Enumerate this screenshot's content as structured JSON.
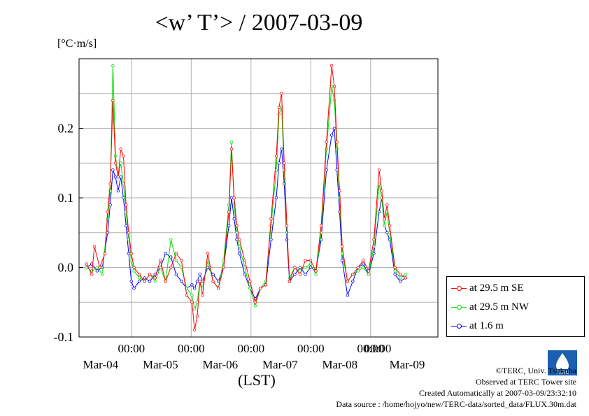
{
  "chart_data": {
    "type": "line",
    "title": "<w’ T’> / 2007-03-09",
    "ylabel": "[°C·m/s]",
    "xlabel": "(LST)",
    "ylim": [
      -0.1,
      0.3
    ],
    "yticks": [
      -0.1,
      0.0,
      0.1,
      0.2
    ],
    "ytick_labels": [
      "-0.1",
      "0.0",
      "0.1",
      "0.2"
    ],
    "xlim_hours": [
      0,
      144
    ],
    "xticks": [
      {
        "time": "00:00",
        "date": "Mar-04"
      },
      {
        "time": "00:00",
        "date": "Mar-05"
      },
      {
        "time": "00:00",
        "date": "Mar-06"
      },
      {
        "time": "00:00",
        "date": "Mar-07"
      },
      {
        "time": "00:00",
        "date": "Mar-08"
      },
      {
        "time": "00:00",
        "date": "Mar-09"
      }
    ],
    "grid": true,
    "legend_position": "right",
    "series": [
      {
        "name": "at 29.5 m SE",
        "color": "#ff0000",
        "points": [
          [
            0,
            0.005
          ],
          [
            2,
            -0.01
          ],
          [
            3,
            0.03
          ],
          [
            5,
            0.0
          ],
          [
            7,
            0.02
          ],
          [
            8,
            0.08
          ],
          [
            9,
            0.12
          ],
          [
            10,
            0.24
          ],
          [
            11,
            0.15
          ],
          [
            12,
            0.13
          ],
          [
            13,
            0.17
          ],
          [
            14,
            0.16
          ],
          [
            15,
            0.09
          ],
          [
            16,
            0.05
          ],
          [
            17,
            0.02
          ],
          [
            18,
            0.0
          ],
          [
            20,
            -0.01
          ],
          [
            22,
            -0.02
          ],
          [
            24,
            -0.01
          ],
          [
            26,
            -0.015
          ],
          [
            28,
            0.01
          ],
          [
            30,
            -0.02
          ],
          [
            32,
            0.0
          ],
          [
            34,
            0.02
          ],
          [
            36,
            0.01
          ],
          [
            38,
            -0.04
          ],
          [
            40,
            -0.05
          ],
          [
            41,
            -0.09
          ],
          [
            42,
            -0.07
          ],
          [
            43,
            -0.02
          ],
          [
            44,
            -0.04
          ],
          [
            46,
            0.02
          ],
          [
            48,
            -0.02
          ],
          [
            50,
            -0.03
          ],
          [
            52,
            0.0
          ],
          [
            54,
            0.08
          ],
          [
            55,
            0.17
          ],
          [
            56,
            0.1
          ],
          [
            57,
            0.06
          ],
          [
            58,
            0.04
          ],
          [
            60,
            0.01
          ],
          [
            62,
            -0.02
          ],
          [
            64,
            -0.05
          ],
          [
            66,
            -0.03
          ],
          [
            68,
            -0.025
          ],
          [
            70,
            0.07
          ],
          [
            72,
            0.16
          ],
          [
            73,
            0.23
          ],
          [
            74,
            0.25
          ],
          [
            75,
            0.15
          ],
          [
            76,
            0.06
          ],
          [
            77,
            -0.02
          ],
          [
            79,
            0.0
          ],
          [
            81,
            -0.01
          ],
          [
            83,
            0.01
          ],
          [
            85,
            0.01
          ],
          [
            87,
            -0.005
          ],
          [
            89,
            0.06
          ],
          [
            91,
            0.18
          ],
          [
            93,
            0.29
          ],
          [
            94,
            0.26
          ],
          [
            95,
            0.18
          ],
          [
            96,
            0.11
          ],
          [
            97,
            0.03
          ],
          [
            99,
            -0.02
          ],
          [
            101,
            -0.01
          ],
          [
            103,
            0.0
          ],
          [
            105,
            0.01
          ],
          [
            107,
            -0.005
          ],
          [
            109,
            0.04
          ],
          [
            111,
            0.14
          ],
          [
            112,
            0.11
          ],
          [
            113,
            0.07
          ],
          [
            114,
            0.09
          ],
          [
            115,
            0.06
          ],
          [
            117,
            0.0
          ],
          [
            119,
            -0.01
          ],
          [
            121,
            -0.015
          ]
        ]
      },
      {
        "name": "at 29.5 m NW",
        "color": "#00dd00",
        "points": [
          [
            0,
            0.0
          ],
          [
            2,
            -0.005
          ],
          [
            4,
            0.0
          ],
          [
            6,
            -0.01
          ],
          [
            8,
            0.07
          ],
          [
            9,
            0.11
          ],
          [
            10,
            0.29
          ],
          [
            11,
            0.16
          ],
          [
            12,
            0.13
          ],
          [
            13,
            0.15
          ],
          [
            14,
            0.12
          ],
          [
            15,
            0.08
          ],
          [
            16,
            0.04
          ],
          [
            17,
            0.01
          ],
          [
            18,
            -0.005
          ],
          [
            20,
            -0.015
          ],
          [
            22,
            -0.02
          ],
          [
            24,
            -0.01
          ],
          [
            26,
            -0.02
          ],
          [
            28,
            0.0
          ],
          [
            30,
            -0.02
          ],
          [
            32,
            0.04
          ],
          [
            34,
            0.01
          ],
          [
            36,
            0.0
          ],
          [
            38,
            -0.03
          ],
          [
            40,
            -0.04
          ],
          [
            41,
            -0.06
          ],
          [
            42,
            -0.05
          ],
          [
            43,
            -0.02
          ],
          [
            44,
            -0.03
          ],
          [
            46,
            0.01
          ],
          [
            48,
            -0.02
          ],
          [
            50,
            -0.03
          ],
          [
            52,
            0.01
          ],
          [
            54,
            0.09
          ],
          [
            55,
            0.18
          ],
          [
            56,
            0.09
          ],
          [
            57,
            0.05
          ],
          [
            58,
            0.03
          ],
          [
            60,
            0.0
          ],
          [
            62,
            -0.03
          ],
          [
            64,
            -0.055
          ],
          [
            66,
            -0.03
          ],
          [
            68,
            -0.02
          ],
          [
            70,
            0.06
          ],
          [
            72,
            0.14
          ],
          [
            73,
            0.22
          ],
          [
            74,
            0.23
          ],
          [
            75,
            0.14
          ],
          [
            76,
            0.05
          ],
          [
            77,
            -0.015
          ],
          [
            79,
            0.0
          ],
          [
            81,
            -0.005
          ],
          [
            83,
            0.0
          ],
          [
            85,
            0.005
          ],
          [
            87,
            -0.01
          ],
          [
            89,
            0.05
          ],
          [
            91,
            0.17
          ],
          [
            93,
            0.26
          ],
          [
            94,
            0.24
          ],
          [
            95,
            0.17
          ],
          [
            96,
            0.1
          ],
          [
            97,
            0.02
          ],
          [
            99,
            -0.02
          ],
          [
            101,
            -0.01
          ],
          [
            103,
            -0.005
          ],
          [
            105,
            0.0
          ],
          [
            107,
            -0.01
          ],
          [
            109,
            0.03
          ],
          [
            111,
            0.12
          ],
          [
            112,
            0.1
          ],
          [
            113,
            0.06
          ],
          [
            114,
            0.08
          ],
          [
            115,
            0.05
          ],
          [
            117,
            -0.005
          ],
          [
            119,
            -0.015
          ],
          [
            121,
            -0.01
          ]
        ]
      },
      {
        "name": "at 1.6 m",
        "color": "#0000ff",
        "points": [
          [
            0,
            0.0
          ],
          [
            2,
            0.005
          ],
          [
            4,
            -0.005
          ],
          [
            6,
            0.0
          ],
          [
            8,
            0.05
          ],
          [
            9,
            0.09
          ],
          [
            10,
            0.14
          ],
          [
            11,
            0.13
          ],
          [
            12,
            0.11
          ],
          [
            13,
            0.13
          ],
          [
            14,
            0.1
          ],
          [
            15,
            0.06
          ],
          [
            16,
            0.02
          ],
          [
            17,
            -0.02
          ],
          [
            18,
            -0.03
          ],
          [
            20,
            -0.02
          ],
          [
            22,
            -0.015
          ],
          [
            24,
            -0.02
          ],
          [
            26,
            -0.01
          ],
          [
            28,
            0.0
          ],
          [
            30,
            0.02
          ],
          [
            32,
            0.015
          ],
          [
            34,
            -0.01
          ],
          [
            36,
            -0.02
          ],
          [
            38,
            -0.03
          ],
          [
            40,
            -0.025
          ],
          [
            41,
            -0.03
          ],
          [
            42,
            -0.02
          ],
          [
            43,
            -0.01
          ],
          [
            44,
            -0.02
          ],
          [
            46,
            0.0
          ],
          [
            48,
            -0.01
          ],
          [
            50,
            -0.02
          ],
          [
            52,
            0.0
          ],
          [
            54,
            0.06
          ],
          [
            55,
            0.1
          ],
          [
            56,
            0.07
          ],
          [
            57,
            0.04
          ],
          [
            58,
            0.02
          ],
          [
            60,
            -0.01
          ],
          [
            62,
            -0.03
          ],
          [
            64,
            -0.045
          ],
          [
            66,
            -0.03
          ],
          [
            68,
            -0.025
          ],
          [
            70,
            0.04
          ],
          [
            72,
            0.1
          ],
          [
            73,
            0.15
          ],
          [
            74,
            0.17
          ],
          [
            75,
            0.12
          ],
          [
            76,
            0.04
          ],
          [
            77,
            -0.02
          ],
          [
            79,
            -0.01
          ],
          [
            81,
            0.0
          ],
          [
            83,
            -0.01
          ],
          [
            85,
            0.0
          ],
          [
            87,
            -0.005
          ],
          [
            89,
            0.04
          ],
          [
            91,
            0.14
          ],
          [
            93,
            0.19
          ],
          [
            94,
            0.2
          ],
          [
            95,
            0.14
          ],
          [
            96,
            0.08
          ],
          [
            97,
            0.01
          ],
          [
            99,
            -0.04
          ],
          [
            101,
            -0.02
          ],
          [
            103,
            0.0
          ],
          [
            105,
            0.005
          ],
          [
            107,
            -0.01
          ],
          [
            109,
            0.02
          ],
          [
            111,
            0.08
          ],
          [
            112,
            0.1
          ],
          [
            113,
            0.06
          ],
          [
            114,
            0.05
          ],
          [
            115,
            0.04
          ],
          [
            117,
            -0.01
          ],
          [
            119,
            -0.02
          ],
          [
            121,
            -0.015
          ]
        ]
      }
    ]
  },
  "legend": {
    "items": [
      {
        "label": "at 29.5 m SE",
        "color": "#ff0000"
      },
      {
        "label": "at 29.5 m NW",
        "color": "#00dd00"
      },
      {
        "label": "at 1.6 m",
        "color": "#0000ff"
      }
    ]
  },
  "credits": {
    "copyright": "©TERC, Univ. Tsukuba",
    "site": "Observed at TERC Tower site",
    "created": "Created Automatically at 2007-03-09/23:32:10",
    "source": "Data source : /home/hojyo/new/TERC-data/sorted_data/FLUX.30m.dat"
  },
  "logo_text": "TERC"
}
